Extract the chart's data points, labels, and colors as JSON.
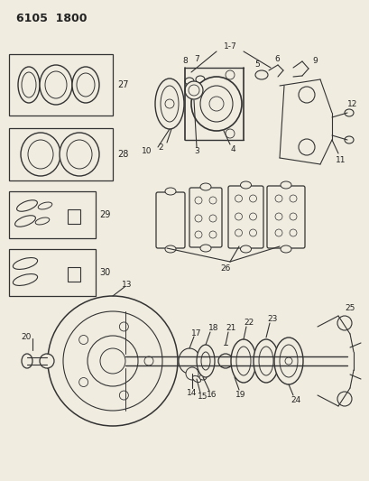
{
  "title": "6105  1800",
  "bg_color": "#f0ece0",
  "line_color": "#333333",
  "text_color": "#222222",
  "fig_w": 4.1,
  "fig_h": 5.33,
  "dpi": 100
}
